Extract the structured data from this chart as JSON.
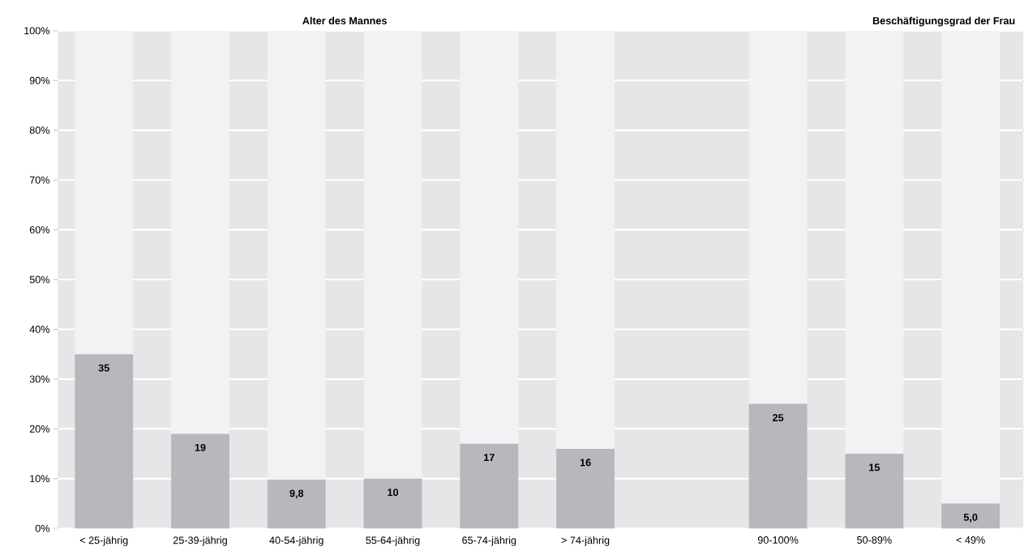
{
  "chart_data": {
    "type": "bar",
    "stacked": true,
    "annotations": [
      "Alter des Mannes",
      "Beschäftigungsgrad der Frau"
    ],
    "categories": [
      "< 25-jährig",
      "25-39-jährig",
      "40-54-jährig",
      "55-64-jährig",
      "65-74-jährig",
      "> 74-jährig",
      null,
      "90-100%",
      "50-89%",
      "< 49%"
    ],
    "series": [
      {
        "color": "#b8b8bc",
        "values": [
          35,
          19,
          9.8,
          10,
          17,
          16,
          null,
          25,
          15,
          5.0
        ],
        "value_labels": [
          "35",
          "19",
          "9,8",
          "10",
          "17",
          "16",
          null,
          "25",
          "15",
          "5,0"
        ]
      },
      {
        "color": "#f2f2f4",
        "values": [
          65,
          81,
          90.2,
          90,
          83,
          84,
          null,
          75,
          85,
          95
        ]
      }
    ],
    "ylim": [
      0,
      100
    ],
    "yticks": [
      {
        "value": 0,
        "label": "0%"
      },
      {
        "value": 10,
        "label": "10%"
      },
      {
        "value": 20,
        "label": "20%"
      },
      {
        "value": 30,
        "label": "30%"
      },
      {
        "value": 40,
        "label": "40%"
      },
      {
        "value": 50,
        "label": "50%"
      },
      {
        "value": 60,
        "label": "60%"
      },
      {
        "value": 70,
        "label": "70%"
      },
      {
        "value": 80,
        "label": "80%"
      },
      {
        "value": 90,
        "label": "90%"
      },
      {
        "value": 100,
        "label": "100%"
      }
    ],
    "grid": "y"
  }
}
